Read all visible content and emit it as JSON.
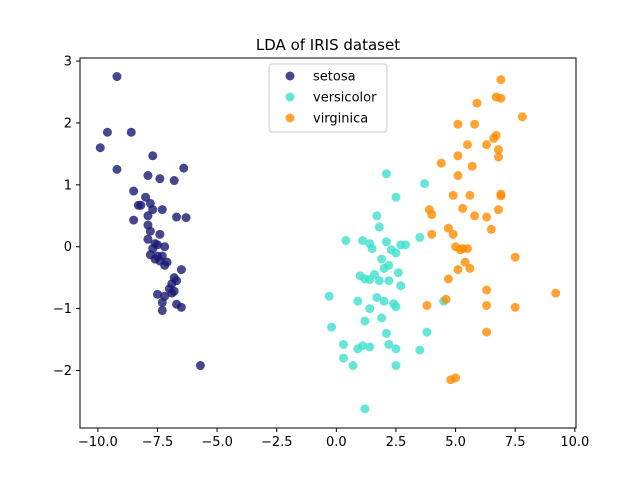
{
  "chart_data": {
    "type": "scatter",
    "title": "LDA of IRIS dataset",
    "xlabel": "",
    "ylabel": "",
    "xlim": [
      -10.75,
      10.05
    ],
    "ylim": [
      -2.93,
      3.05
    ],
    "x_ticks": [
      -10.0,
      -7.5,
      -5.0,
      -2.5,
      0.0,
      2.5,
      5.0,
      7.5,
      10.0
    ],
    "x_tick_labels": [
      "−10.0",
      "−7.5",
      "−5.0",
      "−2.5",
      "0.0",
      "2.5",
      "5.0",
      "7.5",
      "10.0"
    ],
    "y_ticks": [
      -2,
      -1,
      0,
      1,
      2,
      3
    ],
    "y_tick_labels": [
      "−2",
      "−1",
      "0",
      "1",
      "2",
      "3"
    ],
    "grid": false,
    "legend_position": "upper-center",
    "series": [
      {
        "name": "setosa",
        "color": "#191970",
        "points": [
          [
            -9.2,
            2.75
          ],
          [
            -9.6,
            1.85
          ],
          [
            -8.6,
            1.85
          ],
          [
            -9.9,
            1.6
          ],
          [
            -9.2,
            1.25
          ],
          [
            -7.7,
            1.47
          ],
          [
            -6.4,
            1.27
          ],
          [
            -7.9,
            1.15
          ],
          [
            -7.4,
            1.1
          ],
          [
            -6.8,
            1.07
          ],
          [
            -8.5,
            0.9
          ],
          [
            -8.0,
            0.8
          ],
          [
            -8.2,
            0.67
          ],
          [
            -8.3,
            0.67
          ],
          [
            -7.8,
            0.7
          ],
          [
            -7.3,
            0.6
          ],
          [
            -7.7,
            0.6
          ],
          [
            -7.9,
            0.5
          ],
          [
            -6.7,
            0.48
          ],
          [
            -6.3,
            0.47
          ],
          [
            -8.5,
            0.43
          ],
          [
            -7.9,
            0.35
          ],
          [
            -7.8,
            0.25
          ],
          [
            -7.4,
            0.2
          ],
          [
            -7.9,
            0.12
          ],
          [
            -7.6,
            0.05
          ],
          [
            -7.5,
            0.03
          ],
          [
            -7.2,
            0.0
          ],
          [
            -7.7,
            -0.03
          ],
          [
            -7.8,
            -0.13
          ],
          [
            -7.5,
            -0.15
          ],
          [
            -7.3,
            -0.15
          ],
          [
            -7.6,
            -0.2
          ],
          [
            -7.4,
            -0.23
          ],
          [
            -7.1,
            -0.25
          ],
          [
            -7.2,
            -0.3
          ],
          [
            -6.5,
            -0.37
          ],
          [
            -6.8,
            -0.5
          ],
          [
            -6.7,
            -0.55
          ],
          [
            -6.9,
            -0.6
          ],
          [
            -7.0,
            -0.68
          ],
          [
            -6.8,
            -0.72
          ],
          [
            -6.9,
            -0.75
          ],
          [
            -7.5,
            -0.77
          ],
          [
            -7.2,
            -0.8
          ],
          [
            -7.3,
            -0.9
          ],
          [
            -6.7,
            -0.93
          ],
          [
            -6.5,
            -0.98
          ],
          [
            -7.3,
            -1.03
          ],
          [
            -5.7,
            -1.92
          ]
        ]
      },
      {
        "name": "versicolor",
        "color": "#40E0D0",
        "points": [
          [
            2.1,
            1.18
          ],
          [
            3.7,
            1.02
          ],
          [
            2.5,
            0.8
          ],
          [
            1.7,
            0.5
          ],
          [
            1.8,
            0.32
          ],
          [
            0.4,
            0.1
          ],
          [
            1.1,
            0.1
          ],
          [
            1.4,
            0.05
          ],
          [
            2.1,
            0.08
          ],
          [
            2.7,
            0.03
          ],
          [
            2.9,
            0.03
          ],
          [
            3.5,
            0.15
          ],
          [
            1.5,
            -0.03
          ],
          [
            2.3,
            -0.05
          ],
          [
            2.5,
            -0.1
          ],
          [
            1.9,
            -0.2
          ],
          [
            2.2,
            -0.3
          ],
          [
            2.0,
            -0.35
          ],
          [
            2.6,
            -0.42
          ],
          [
            1.6,
            -0.45
          ],
          [
            1.0,
            -0.47
          ],
          [
            1.2,
            -0.52
          ],
          [
            1.4,
            -0.53
          ],
          [
            1.8,
            -0.55
          ],
          [
            2.2,
            -0.55
          ],
          [
            2.7,
            -0.63
          ],
          [
            -0.3,
            -0.8
          ],
          [
            1.7,
            -0.82
          ],
          [
            2.0,
            -0.88
          ],
          [
            0.9,
            -0.88
          ],
          [
            2.4,
            -0.92
          ],
          [
            2.5,
            -0.97
          ],
          [
            1.4,
            -1.0
          ],
          [
            4.5,
            -0.88
          ],
          [
            1.9,
            -1.15
          ],
          [
            1.2,
            -1.2
          ],
          [
            -0.2,
            -1.3
          ],
          [
            2.1,
            -1.4
          ],
          [
            3.8,
            -1.38
          ],
          [
            0.3,
            -1.58
          ],
          [
            1.4,
            -1.62
          ],
          [
            0.9,
            -1.65
          ],
          [
            1.1,
            -1.6
          ],
          [
            2.2,
            -1.58
          ],
          [
            3.5,
            -1.67
          ],
          [
            2.5,
            -1.65
          ],
          [
            0.3,
            -1.8
          ],
          [
            0.7,
            -1.92
          ],
          [
            2.5,
            -1.92
          ],
          [
            1.2,
            -2.62
          ]
        ]
      },
      {
        "name": "virginica",
        "color": "#FF8C00",
        "points": [
          [
            6.9,
            2.7
          ],
          [
            6.7,
            2.42
          ],
          [
            6.9,
            2.4
          ],
          [
            5.9,
            2.32
          ],
          [
            7.8,
            2.1
          ],
          [
            5.1,
            1.98
          ],
          [
            5.8,
            1.98
          ],
          [
            6.7,
            1.8
          ],
          [
            6.6,
            1.75
          ],
          [
            6.3,
            1.65
          ],
          [
            5.5,
            1.65
          ],
          [
            6.8,
            1.57
          ],
          [
            5.1,
            1.47
          ],
          [
            6.8,
            1.45
          ],
          [
            4.4,
            1.35
          ],
          [
            5.7,
            1.3
          ],
          [
            5.1,
            1.15
          ],
          [
            4.9,
            0.83
          ],
          [
            5.6,
            0.83
          ],
          [
            6.9,
            0.85
          ],
          [
            6.9,
            0.82
          ],
          [
            5.3,
            0.62
          ],
          [
            3.9,
            0.6
          ],
          [
            6.8,
            0.6
          ],
          [
            6.3,
            0.48
          ],
          [
            4.0,
            0.52
          ],
          [
            5.8,
            0.5
          ],
          [
            4.7,
            0.3
          ],
          [
            6.5,
            0.28
          ],
          [
            4.0,
            0.2
          ],
          [
            4.9,
            0.2
          ],
          [
            5.0,
            0.0
          ],
          [
            5.3,
            -0.03
          ],
          [
            5.5,
            -0.03
          ],
          [
            5.2,
            -0.05
          ],
          [
            5.4,
            -0.25
          ],
          [
            5.6,
            -0.35
          ],
          [
            5.1,
            -0.37
          ],
          [
            7.5,
            -0.17
          ],
          [
            4.7,
            -0.52
          ],
          [
            6.3,
            -0.7
          ],
          [
            9.2,
            -0.75
          ],
          [
            4.6,
            -0.85
          ],
          [
            3.8,
            -0.95
          ],
          [
            6.3,
            -0.95
          ],
          [
            7.5,
            -0.98
          ],
          [
            6.3,
            -1.38
          ],
          [
            4.8,
            -2.15
          ],
          [
            5.0,
            -2.12
          ]
        ]
      }
    ]
  }
}
